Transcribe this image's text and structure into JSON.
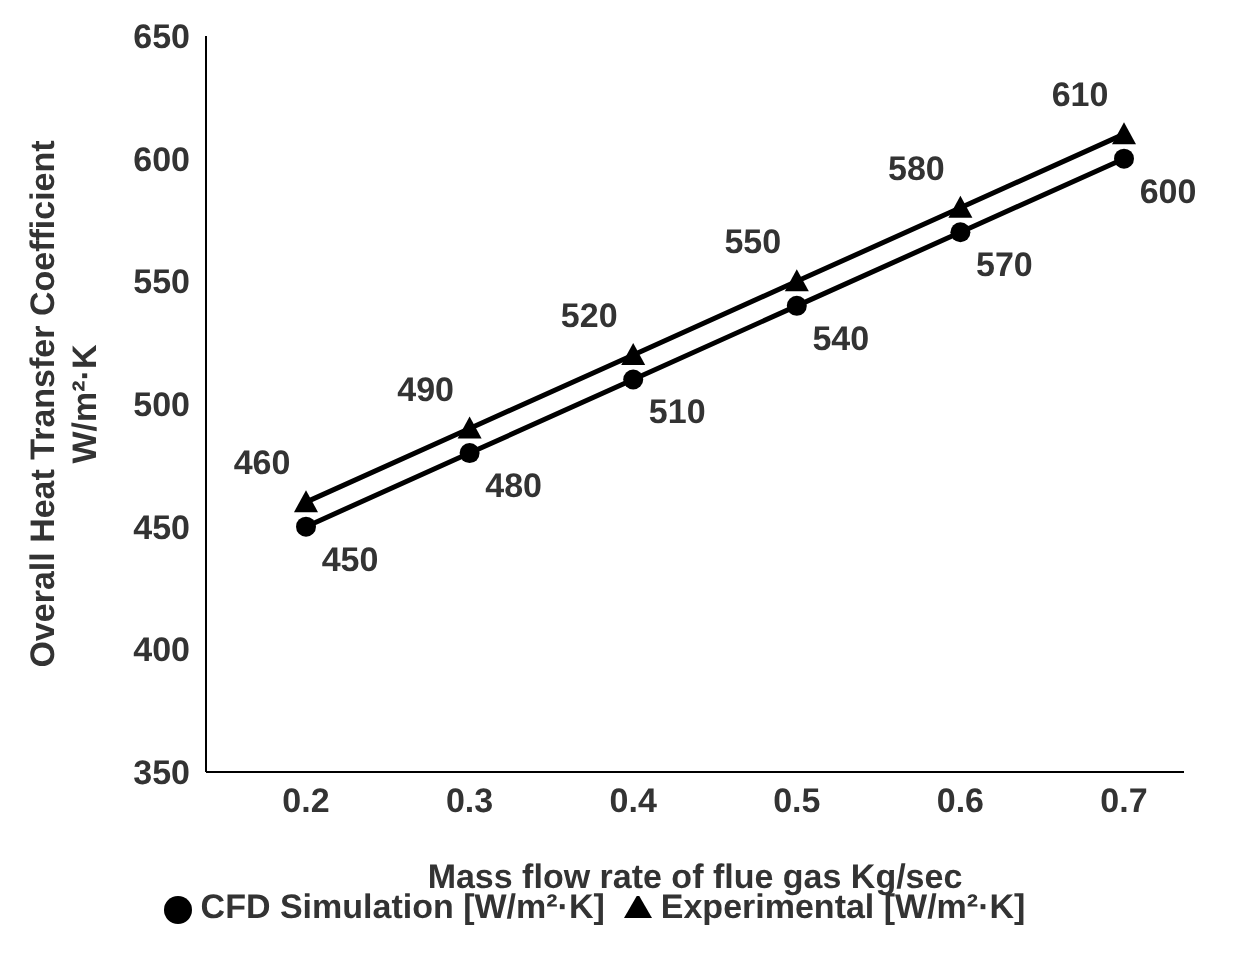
{
  "chart_data": {
    "type": "line",
    "xlabel": "Mass flow rate of flue gas Kg/sec",
    "ylabel": "Overall Heat Transfer Coefficient\nW/m²·K",
    "categories": [
      "0.2",
      "0.3",
      "0.4",
      "0.5",
      "0.6",
      "0.7"
    ],
    "series": [
      {
        "name": "CFD Simulation [W/m²·K]",
        "color": "#000000",
        "marker": "circle",
        "values": [
          450,
          480,
          510,
          540,
          570,
          600
        ]
      },
      {
        "name": "Experimental [W/m²·K]",
        "color": "#000000",
        "marker": "triangle",
        "values": [
          460,
          490,
          520,
          550,
          580,
          610
        ]
      }
    ],
    "ylim": [
      350,
      650
    ],
    "yticks": [
      350,
      400,
      450,
      500,
      550,
      600,
      650
    ],
    "grid": false,
    "legend": "bottom",
    "data_labels": true,
    "line_style": "solid"
  }
}
